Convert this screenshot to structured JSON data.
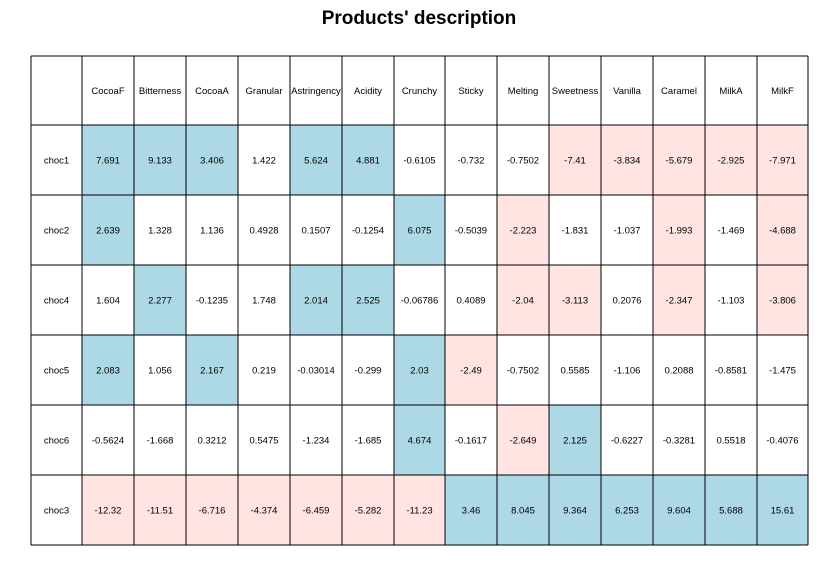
{
  "title": "Products' description",
  "chart_data": {
    "type": "table",
    "title": "Products' description",
    "columns": [
      "CocoaF",
      "Bitterness",
      "CocoaA",
      "Granular",
      "Astringency",
      "Acidity",
      "Crunchy",
      "Sticky",
      "Melting",
      "Sweetness",
      "Vanilla",
      "Caramel",
      "MilkA",
      "MilkF"
    ],
    "rows": [
      {
        "label": "choc1",
        "values": [
          "7.691",
          "9.133",
          "3.406",
          "1.422",
          "5.624",
          "4.881",
          "-0.6105",
          "-0.732",
          "-0.7502",
          "-7.41",
          "-3.834",
          "-5.679",
          "-2.925",
          "-7.971"
        ],
        "highlight": [
          "pos",
          "pos",
          "pos",
          "",
          "pos",
          "pos",
          "",
          "",
          "",
          "neg",
          "neg",
          "neg",
          "neg",
          "neg"
        ]
      },
      {
        "label": "choc2",
        "values": [
          "2.639",
          "1.328",
          "1.136",
          "0.4928",
          "0.1507",
          "-0.1254",
          "6.075",
          "-0.5039",
          "-2.223",
          "-1.831",
          "-1.037",
          "-1.993",
          "-1.469",
          "-4.688"
        ],
        "highlight": [
          "pos",
          "",
          "",
          "",
          "",
          "",
          "pos",
          "",
          "neg",
          "",
          "",
          "neg",
          "",
          "neg"
        ]
      },
      {
        "label": "choc4",
        "values": [
          "1.604",
          "2.277",
          "-0.1235",
          "1.748",
          "2.014",
          "2.525",
          "-0.06786",
          "0.4089",
          "-2.04",
          "-3.113",
          "0.2076",
          "-2.347",
          "-1.103",
          "-3.806"
        ],
        "highlight": [
          "",
          "pos",
          "",
          "",
          "pos",
          "pos",
          "",
          "",
          "neg",
          "neg",
          "",
          "neg",
          "",
          "neg"
        ]
      },
      {
        "label": "choc5",
        "values": [
          "2.083",
          "1.056",
          "2.167",
          "0.219",
          "-0.03014",
          "-0.299",
          "2.03",
          "-2.49",
          "-0.7502",
          "0.5585",
          "-1.106",
          "0.2088",
          "-0.8581",
          "-1.475"
        ],
        "highlight": [
          "pos",
          "",
          "pos",
          "",
          "",
          "",
          "pos",
          "neg",
          "",
          "",
          "",
          "",
          "",
          ""
        ]
      },
      {
        "label": "choc6",
        "values": [
          "-0.5624",
          "-1.668",
          "0.3212",
          "0.5475",
          "-1.234",
          "-1.685",
          "4.674",
          "-0.1617",
          "-2.649",
          "2.125",
          "-0.6227",
          "-0.3281",
          "0.5518",
          "-0.4076"
        ],
        "highlight": [
          "",
          "",
          "",
          "",
          "",
          "",
          "pos",
          "",
          "neg",
          "pos",
          "",
          "",
          "",
          ""
        ]
      },
      {
        "label": "choc3",
        "values": [
          "-12.32",
          "-11.51",
          "-6.716",
          "-4.374",
          "-6.459",
          "-5.282",
          "-11.23",
          "3.46",
          "8.045",
          "9.364",
          "6.253",
          "9.604",
          "5.688",
          "15.61"
        ],
        "highlight": [
          "neg",
          "neg",
          "neg",
          "neg",
          "neg",
          "neg",
          "neg",
          "pos",
          "pos",
          "pos",
          "pos",
          "pos",
          "pos",
          "pos"
        ]
      }
    ],
    "colors": {
      "pos": "#add8e6",
      "neg": "#ffe4e1",
      "none": "#ffffff",
      "grid": "#000000"
    }
  }
}
